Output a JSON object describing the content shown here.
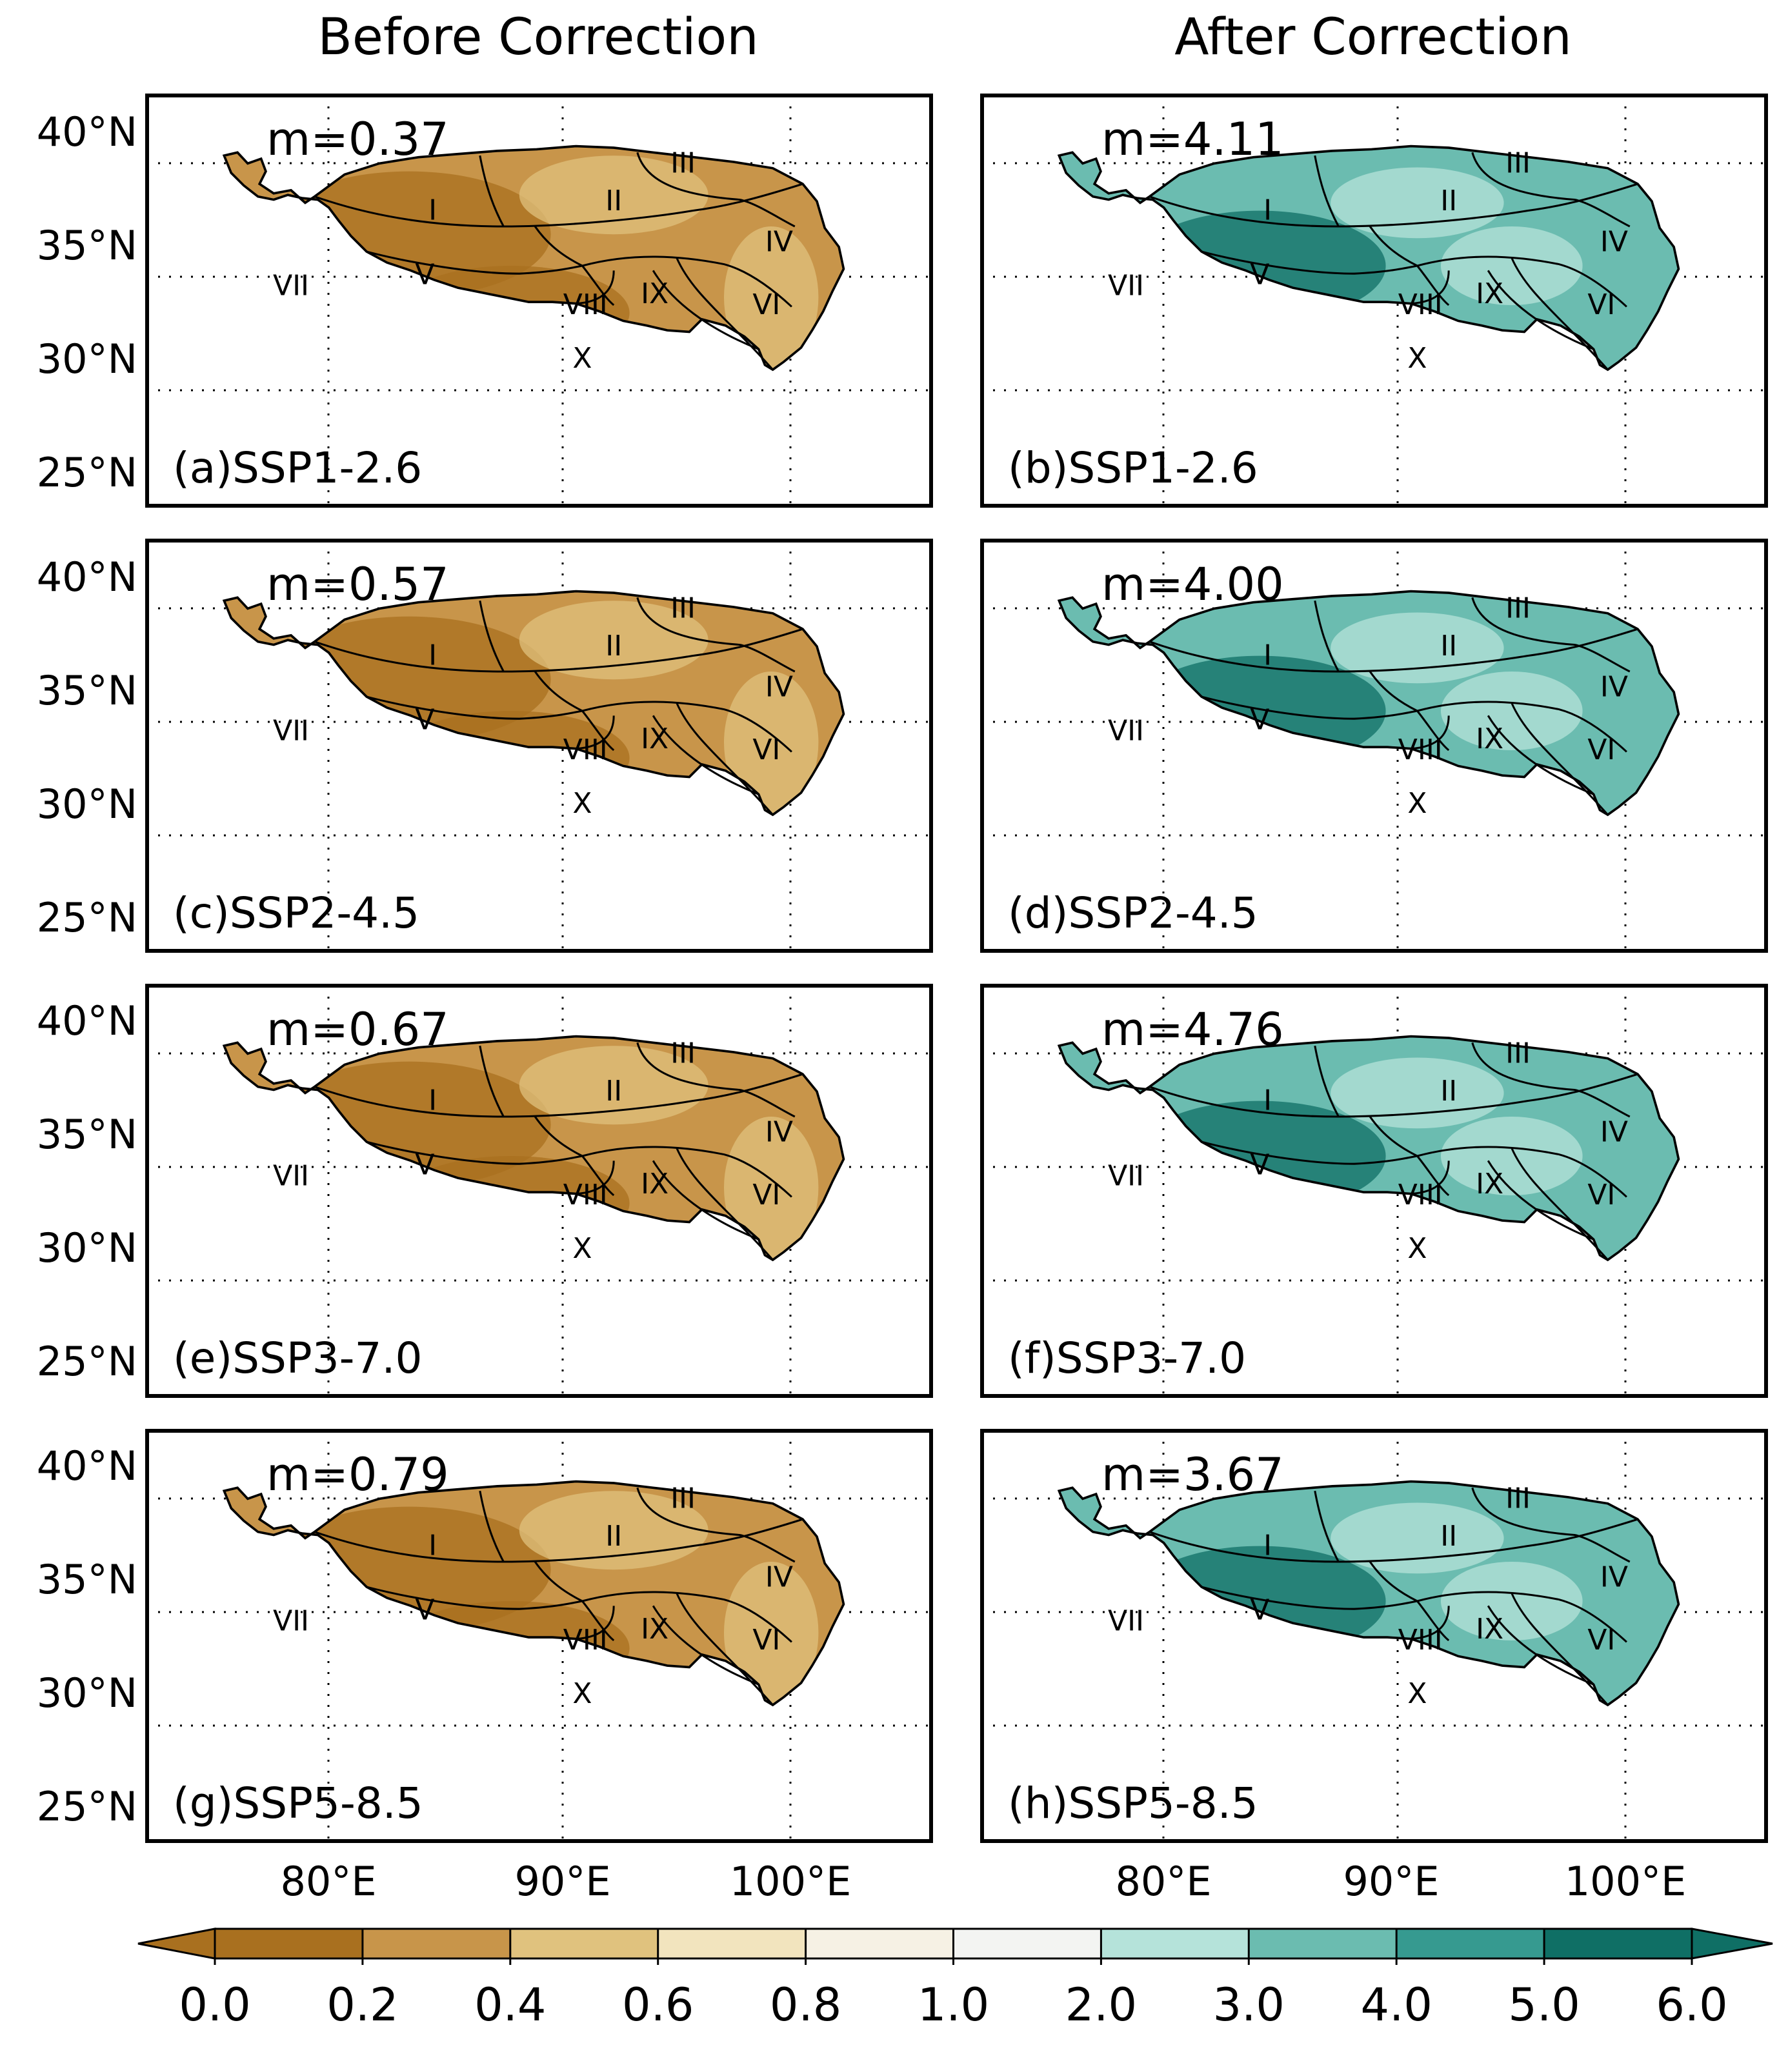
{
  "columns": [
    {
      "title": "Before Correction"
    },
    {
      "title": "After Correction"
    }
  ],
  "lat_labels": [
    "40°N",
    "35°N",
    "30°N",
    "25°N"
  ],
  "lon_labels": [
    "80°E",
    "90°E",
    "100°E"
  ],
  "region_labels": [
    "I",
    "II",
    "III",
    "IV",
    "V",
    "VI",
    "VII",
    "VIII",
    "IX",
    "X"
  ],
  "panels": [
    {
      "label": "(a)SSP1-2.6",
      "mean": "m=0.37",
      "scenario": "SSP1-2.6",
      "column": 0,
      "row": 0
    },
    {
      "label": "(b)SSP1-2.6",
      "mean": "m=4.11",
      "scenario": "SSP1-2.6",
      "column": 1,
      "row": 0
    },
    {
      "label": "(c)SSP2-4.5",
      "mean": "m=0.57",
      "scenario": "SSP2-4.5",
      "column": 0,
      "row": 1
    },
    {
      "label": "(d)SSP2-4.5",
      "mean": "m=4.00",
      "scenario": "SSP2-4.5",
      "column": 1,
      "row": 1
    },
    {
      "label": "(e)SSP3-7.0",
      "mean": "m=0.67",
      "scenario": "SSP3-7.0",
      "column": 0,
      "row": 2
    },
    {
      "label": "(f)SSP3-7.0",
      "mean": "m=4.76",
      "scenario": "SSP3-7.0",
      "column": 1,
      "row": 2
    },
    {
      "label": "(g)SSP5-8.5",
      "mean": "m=0.79",
      "scenario": "SSP5-8.5",
      "column": 0,
      "row": 3
    },
    {
      "label": "(h)SSP5-8.5",
      "mean": "m=3.67",
      "scenario": "SSP5-8.5",
      "column": 1,
      "row": 3
    }
  ],
  "colorbar": {
    "ticks": [
      "0.0",
      "0.2",
      "0.4",
      "0.6",
      "0.8",
      "1.0",
      "2.0",
      "3.0",
      "4.0",
      "5.0",
      "6.0"
    ],
    "colors": [
      "#a9701f",
      "#c8954a",
      "#e0c27e",
      "#f2e4be",
      "#f6f1e4",
      "#f3f4f2",
      "#b5e3da",
      "#6bbcb0",
      "#369a90",
      "#0f6f65"
    ],
    "extend": "both"
  },
  "palette": {
    "dry_low": "#a9701f",
    "dry_mid": "#c8954a",
    "dry_light": "#e0c27e",
    "wet_light": "#b5e3da",
    "wet_mid": "#6bbcb0",
    "wet_dark": "#0f6f65",
    "frame": "#000000"
  }
}
